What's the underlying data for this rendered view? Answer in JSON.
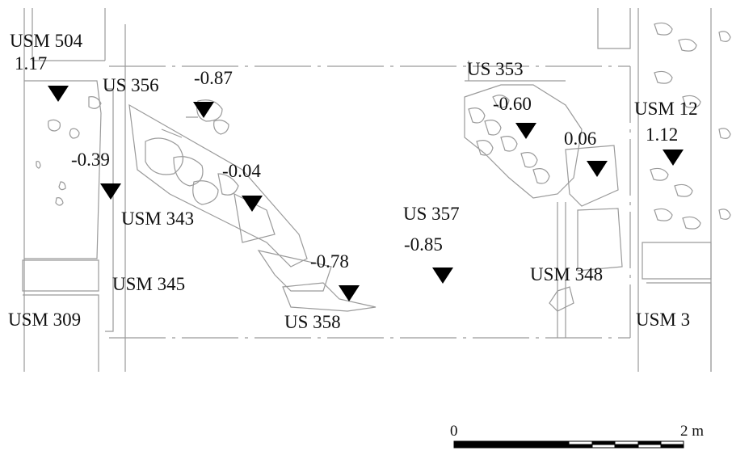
{
  "labels": {
    "usm504": "USM 504",
    "usm504_elev": "1.17",
    "us356": "US 356",
    "us356_elev": "-0.87",
    "elev_039": "-0.39",
    "elev_004": "-0.04",
    "usm343": "USM 343",
    "usm345": "USM 345",
    "usm309": "USM 309",
    "elev_078": "-0.78",
    "us358": "US 358",
    "us357": "US 357",
    "us357_elev": "-0.85",
    "us353": "US 353",
    "us353_elev": "-0.60",
    "elev_006": "0.06",
    "usm12": "USM 12",
    "usm12_elev": "1.12",
    "usm348": "USM 348",
    "usm3": "USM 3"
  },
  "scale_bar": {
    "start_label": "0",
    "end_label": "2 m"
  },
  "colors": {
    "line": "#9a9a9a",
    "marker": "#000000",
    "text": "#111111"
  }
}
